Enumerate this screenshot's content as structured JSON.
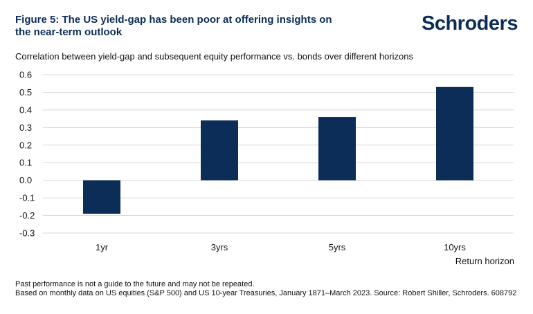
{
  "header": {
    "title": "Figure 5: The US yield-gap has been poor at offering insights on the near-term outlook",
    "logo_text": "Schroders"
  },
  "chart_data": {
    "type": "bar",
    "title": "Correlation between yield-gap and subsequent equity performance vs. bonds over different horizons",
    "categories": [
      "1yr",
      "3yrs",
      "5yrs",
      "10yrs"
    ],
    "values": [
      -0.19,
      0.34,
      0.36,
      0.53
    ],
    "xlabel": "Return horizon",
    "ylabel": "",
    "ylim": [
      -0.3,
      0.6
    ],
    "yticks": [
      "0.6",
      "0.5",
      "0.4",
      "0.3",
      "0.2",
      "0.1",
      "0.0",
      "-0.1",
      "-0.2",
      "-0.3"
    ],
    "grid": true,
    "bar_color": "#0b2d57",
    "grid_color": "#d9d9d9"
  },
  "footer": {
    "note1": "Past performance is not a guide to the future and may not be repeated.",
    "note2": "Based on monthly data on US equities (S&P 500) and US 10-year Treasuries, January 1871–March 2023. Source: Robert Shiller, Schroders. 608792"
  }
}
